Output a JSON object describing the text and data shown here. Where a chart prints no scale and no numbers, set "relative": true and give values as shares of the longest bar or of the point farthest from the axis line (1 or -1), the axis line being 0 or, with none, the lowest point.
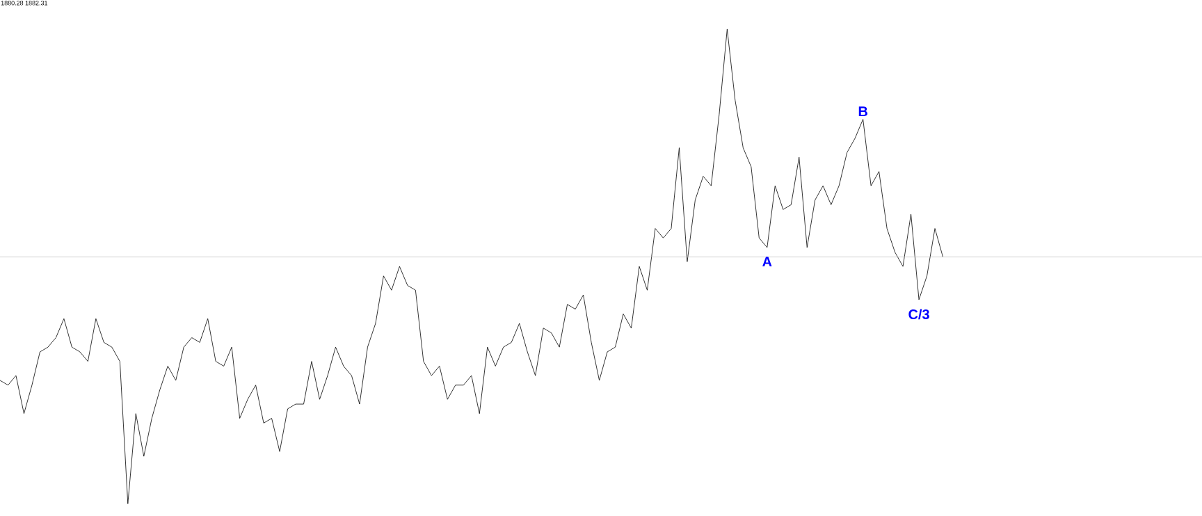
{
  "chart_data": {
    "type": "line",
    "relative": true,
    "categories": [
      null,
      null,
      null,
      null,
      null,
      null,
      null,
      null,
      null,
      null,
      null,
      null,
      null,
      null,
      null,
      null,
      null,
      null,
      null,
      null,
      null,
      null,
      null,
      null,
      null,
      null,
      null,
      null,
      null,
      null,
      null,
      null,
      null,
      null,
      null,
      null,
      null,
      null,
      null,
      null,
      null,
      null,
      null,
      null,
      null,
      null,
      null,
      null,
      null,
      null,
      null,
      null,
      null,
      null,
      null,
      null,
      null,
      null,
      null,
      null,
      null,
      null,
      null,
      null,
      null,
      null,
      null,
      null,
      null,
      null,
      null,
      null,
      null,
      null,
      null,
      null,
      null,
      null,
      null,
      null,
      null,
      null,
      null,
      null,
      null,
      null,
      null,
      null,
      null,
      null,
      null,
      null,
      null,
      null,
      null,
      null,
      null,
      null,
      null,
      null,
      null,
      null,
      null,
      null,
      null,
      null,
      null,
      null,
      null,
      null,
      null,
      null,
      null,
      null,
      null,
      null,
      null,
      null,
      null
    ],
    "series": [
      {
        "color": "#000000",
        "values": [
          0.26,
          0.25,
          0.27,
          0.19,
          0.25,
          0.32,
          0.33,
          0.35,
          0.39,
          0.33,
          0.32,
          0.3,
          0.39,
          0.34,
          0.33,
          0.3,
          0,
          0.19,
          0.1,
          0.18,
          0.24,
          0.29,
          0.26,
          0.33,
          0.35,
          0.34,
          0.39,
          0.3,
          0.29,
          0.33,
          0.18,
          0.22,
          0.25,
          0.17,
          0.18,
          0.11,
          0.2,
          0.21,
          0.21,
          0.3,
          0.22,
          0.27,
          0.33,
          0.29,
          0.27,
          0.21,
          0.33,
          0.38,
          0.48,
          0.45,
          0.5,
          0.46,
          0.45,
          0.3,
          0.27,
          0.29,
          0.22,
          0.25,
          0.25,
          0.27,
          0.19,
          0.33,
          0.29,
          0.33,
          0.34,
          0.38,
          0.32,
          0.27,
          0.37,
          0.36,
          0.33,
          0.42,
          0.41,
          0.44,
          0.34,
          0.26,
          0.32,
          0.33,
          0.4,
          0.37,
          0.5,
          0.45,
          0.58,
          0.56,
          0.58,
          0.75,
          0.51,
          0.64,
          0.69,
          0.67,
          0.82,
          1,
          0.85,
          0.75,
          0.71,
          0.56,
          0.54,
          0.67,
          0.62,
          0.63,
          0.73,
          0.54,
          0.64,
          0.67,
          0.63,
          0.67,
          0.74,
          0.77,
          0.81,
          0.67,
          0.7,
          0.58,
          0.53,
          0.5,
          0.61,
          0.43,
          0.48,
          0.58,
          0.52
        ]
      }
    ],
    "ref_lines": [
      {
        "axis": "y",
        "value": 0.52,
        "color": "#c0c0c0"
      }
    ],
    "annotations": [
      "1880.28 1882.31",
      {
        "text": "A",
        "y": 0.54
      },
      {
        "text": "B",
        "y": 0.81
      },
      {
        "text": "C/3",
        "y": 0.43
      }
    ]
  }
}
